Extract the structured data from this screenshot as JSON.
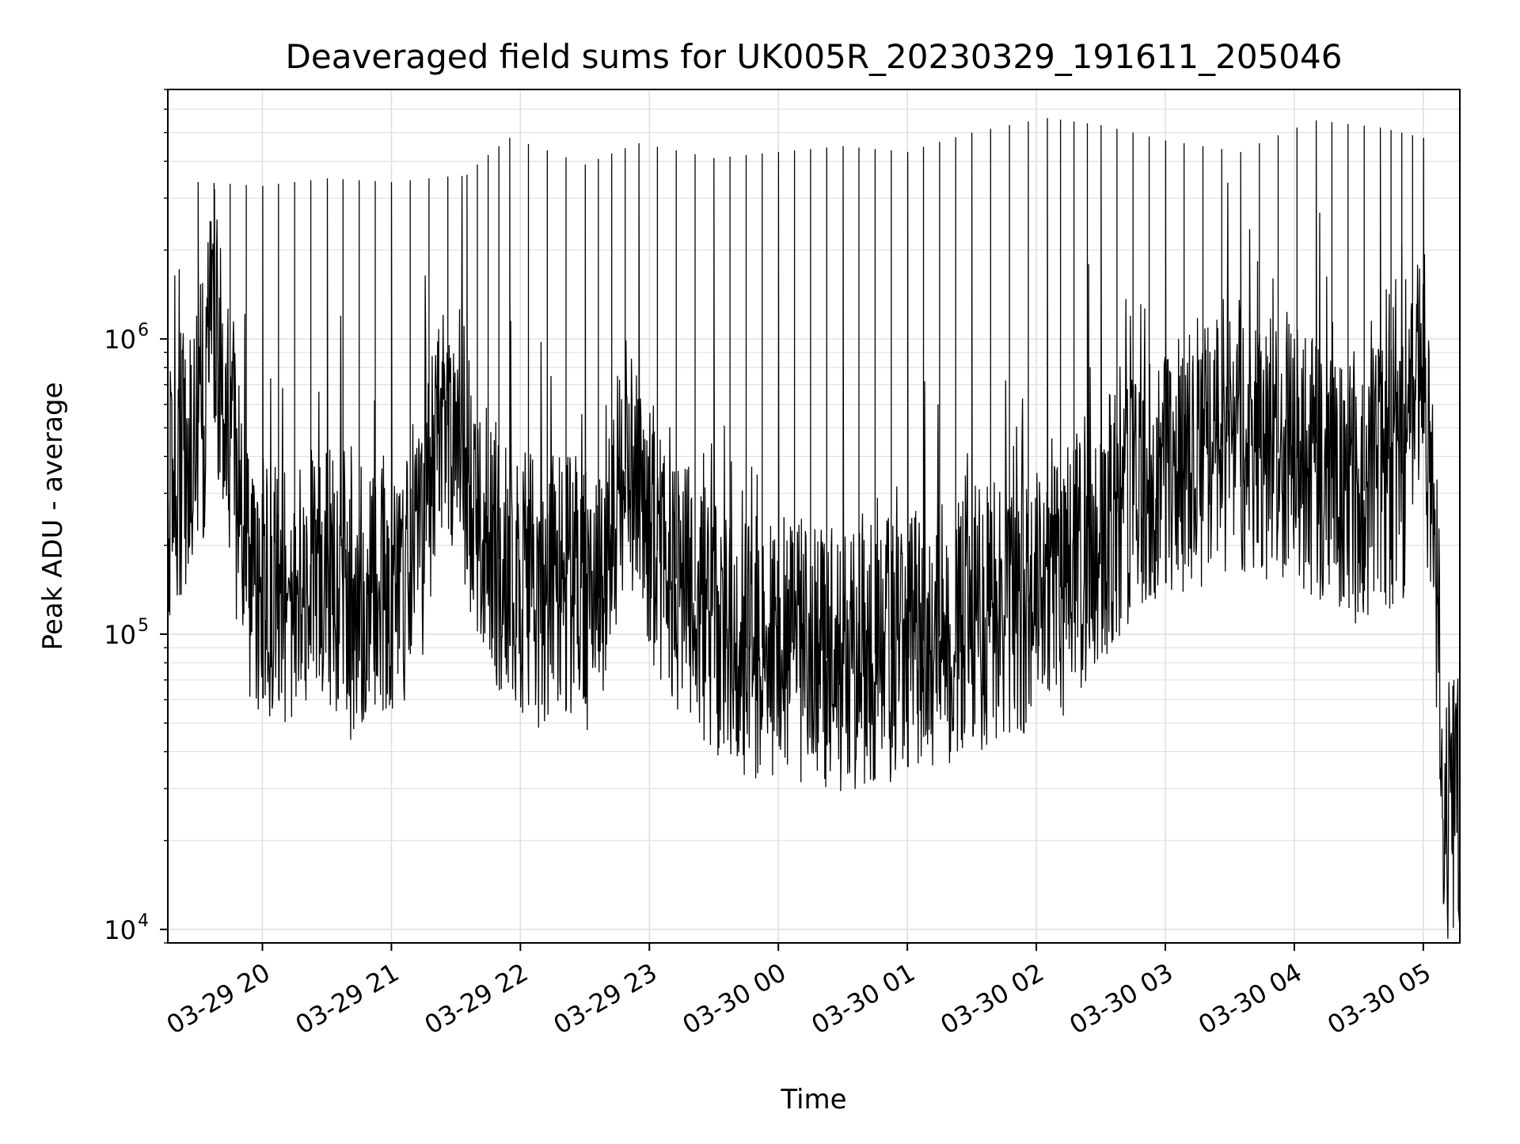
{
  "chart_data": {
    "type": "line",
    "title": "Deaveraged field sums for UK005R_20230329_191611_205046",
    "xlabel": "Time",
    "ylabel": "Peak ADU - average",
    "yscale": "log",
    "ylim": [
      9000,
      7000000
    ],
    "xlim": [
      "2023-03-29 19:16",
      "2023-03-30 05:17"
    ],
    "grid": true,
    "line_color": "#000000",
    "grid_color": "#e0e0e0",
    "x_ticks": [
      {
        "value": "2023-03-29 20:00",
        "label": "03-29 20"
      },
      {
        "value": "2023-03-29 21:00",
        "label": "03-29 21"
      },
      {
        "value": "2023-03-29 22:00",
        "label": "03-29 22"
      },
      {
        "value": "2023-03-29 23:00",
        "label": "03-29 23"
      },
      {
        "value": "2023-03-30 00:00",
        "label": "03-30 00"
      },
      {
        "value": "2023-03-30 01:00",
        "label": "03-30 01"
      },
      {
        "value": "2023-03-30 02:00",
        "label": "03-30 02"
      },
      {
        "value": "2023-03-30 03:00",
        "label": "03-30 03"
      },
      {
        "value": "2023-03-30 04:00",
        "label": "03-30 04"
      },
      {
        "value": "2023-03-30 05:00",
        "label": "03-30 05"
      }
    ],
    "y_ticks": [
      {
        "value": 10000,
        "base": "10",
        "exp": "4"
      },
      {
        "value": 100000,
        "base": "10",
        "exp": "5"
      },
      {
        "value": 1000000,
        "base": "10",
        "exp": "6"
      }
    ],
    "series": [
      {
        "values": [
          [
            "2023-03-29 19:16",
            300000
          ],
          [
            "2023-03-29 19:25",
            420000
          ],
          [
            "2023-03-29 19:33",
            600000
          ],
          [
            "2023-03-29 19:37",
            1200000
          ],
          [
            "2023-03-29 19:40",
            800000
          ],
          [
            "2023-03-29 19:45",
            400000
          ],
          [
            "2023-03-29 19:55",
            150000
          ],
          [
            "2023-03-29 20:10",
            130000
          ],
          [
            "2023-03-29 20:25",
            160000
          ],
          [
            "2023-03-29 20:40",
            120000
          ],
          [
            "2023-03-29 20:55",
            150000
          ],
          [
            "2023-03-29 21:10",
            140000
          ],
          [
            "2023-03-29 21:20",
            450000
          ],
          [
            "2023-03-29 21:30",
            550000
          ],
          [
            "2023-03-29 21:40",
            250000
          ],
          [
            "2023-03-29 21:50",
            180000
          ],
          [
            "2023-03-29 22:05",
            130000
          ],
          [
            "2023-03-29 22:20",
            150000
          ],
          [
            "2023-03-29 22:35",
            120000
          ],
          [
            "2023-03-29 22:50",
            400000
          ],
          [
            "2023-03-29 23:05",
            180000
          ],
          [
            "2023-03-29 23:25",
            120000
          ],
          [
            "2023-03-29 23:45",
            90000
          ],
          [
            "2023-03-30 00:05",
            90000
          ],
          [
            "2023-03-30 00:30",
            80000
          ],
          [
            "2023-03-30 00:55",
            90000
          ],
          [
            "2023-03-30 01:20",
            100000
          ],
          [
            "2023-03-30 01:45",
            120000
          ],
          [
            "2023-03-30 02:10",
            140000
          ],
          [
            "2023-03-30 02:35",
            250000
          ],
          [
            "2023-03-30 03:00",
            350000
          ],
          [
            "2023-03-30 03:30",
            450000
          ],
          [
            "2023-03-30 04:00",
            400000
          ],
          [
            "2023-03-30 04:30",
            300000
          ],
          [
            "2023-03-30 04:50",
            350000
          ],
          [
            "2023-03-30 05:00",
            800000
          ],
          [
            "2023-03-30 05:06",
            150000
          ],
          [
            "2023-03-30 05:10",
            25000
          ],
          [
            "2023-03-30 05:17",
            30000
          ]
        ]
      }
    ],
    "spikes": [
      [
        "2023-03-29 19:30",
        3400000
      ],
      [
        "2023-03-29 20:00",
        3300000
      ],
      [
        "2023-03-29 20:30",
        3500000
      ],
      [
        "2023-03-29 21:00",
        3400000
      ],
      [
        "2023-03-29 21:35",
        3600000
      ],
      [
        "2023-03-29 21:55",
        4800000
      ],
      [
        "2023-03-29 22:30",
        3900000
      ],
      [
        "2023-03-29 22:55",
        4600000
      ],
      [
        "2023-03-29 23:30",
        4100000
      ],
      [
        "2023-03-30 00:00",
        4300000
      ],
      [
        "2023-03-30 00:30",
        4500000
      ],
      [
        "2023-03-30 01:00",
        4300000
      ],
      [
        "2023-03-30 01:30",
        5000000
      ],
      [
        "2023-03-30 02:05",
        5600000
      ],
      [
        "2023-03-30 02:30",
        5300000
      ],
      [
        "2023-03-30 03:00",
        4700000
      ],
      [
        "2023-03-30 03:35",
        4300000
      ],
      [
        "2023-03-30 04:10",
        5500000
      ],
      [
        "2023-03-30 04:40",
        5200000
      ],
      [
        "2023-03-30 05:00",
        4800000
      ]
    ]
  }
}
